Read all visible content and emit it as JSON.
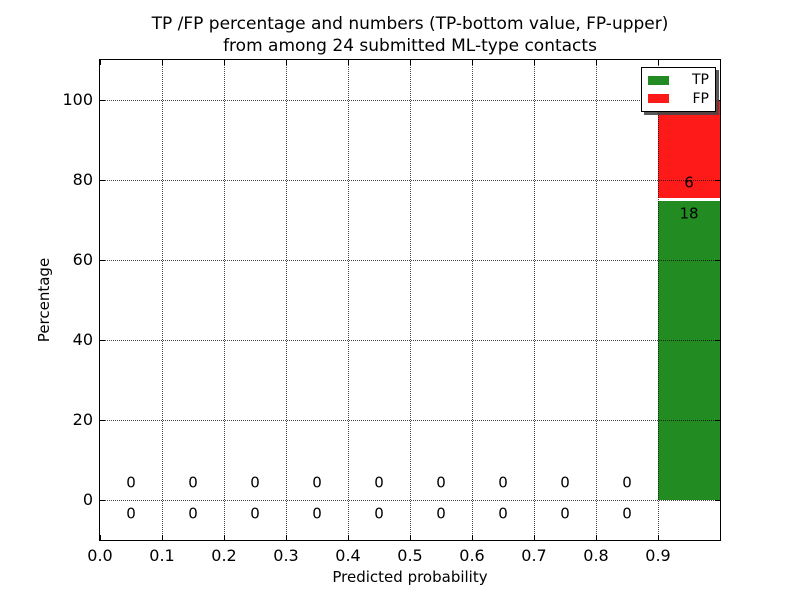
{
  "figure": {
    "title_line1": "TP /FP percentage and numbers (TP-bottom value, FP-upper)",
    "title_line2": "from among 24 submitted ML-type contacts",
    "background": "#ffffff"
  },
  "axes": {
    "xlabel": "Predicted probability",
    "ylabel": "Percentage",
    "x_tick_labels": [
      "0.0",
      "0.1",
      "0.2",
      "0.3",
      "0.4",
      "0.5",
      "0.6",
      "0.7",
      "0.8",
      "0.9"
    ],
    "y_tick_labels": [
      "0",
      "20",
      "40",
      "60",
      "80",
      "100"
    ]
  },
  "legend": {
    "position": "upper right",
    "items": [
      {
        "label": "TP",
        "color": "#228b22"
      },
      {
        "label": "FP",
        "color": "#ff1a1a"
      }
    ]
  },
  "chart_data": {
    "type": "bar",
    "stacked": true,
    "title": "TP /FP percentage and numbers (TP-bottom value, FP-upper) from among 24 submitted ML-type contacts",
    "xlabel": "Predicted probability",
    "ylabel": "Percentage",
    "xlim": [
      0.0,
      1.0
    ],
    "ylim": [
      -10,
      110
    ],
    "x_major_ticks": [
      0.0,
      0.1,
      0.2,
      0.3,
      0.4,
      0.5,
      0.6,
      0.7,
      0.8,
      0.9,
      1.0
    ],
    "y_major_ticks": [
      0,
      20,
      40,
      60,
      80,
      100
    ],
    "grid": "dotted",
    "legend_position": "upper right",
    "total_contacts": 24,
    "bin_edges": [
      0.0,
      0.1,
      0.2,
      0.3,
      0.4,
      0.5,
      0.6,
      0.7,
      0.8,
      0.9,
      1.0
    ],
    "categories": [
      "0.0-0.1",
      "0.1-0.2",
      "0.2-0.3",
      "0.3-0.4",
      "0.4-0.5",
      "0.5-0.6",
      "0.6-0.7",
      "0.7-0.8",
      "0.8-0.9",
      "0.9-1.0"
    ],
    "series": [
      {
        "name": "TP",
        "color": "#228b22",
        "counts": [
          0,
          0,
          0,
          0,
          0,
          0,
          0,
          0,
          0,
          18
        ],
        "percentages": [
          0,
          0,
          0,
          0,
          0,
          0,
          0,
          0,
          0,
          75
        ]
      },
      {
        "name": "FP",
        "color": "#ff1a1a",
        "counts": [
          0,
          0,
          0,
          0,
          0,
          0,
          0,
          0,
          0,
          6
        ],
        "percentages": [
          0,
          0,
          0,
          0,
          0,
          0,
          0,
          0,
          0,
          25
        ]
      }
    ]
  }
}
